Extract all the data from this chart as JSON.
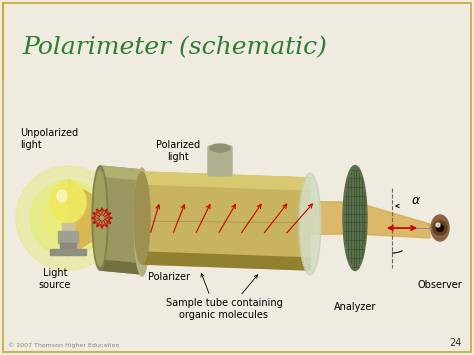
{
  "title": "Polarimeter (schematic)",
  "title_color": "#2e7d32",
  "title_fontsize": 18,
  "bg_color": "#f0ebe0",
  "border_color": "#c8a830",
  "labels": {
    "unpolarized_light": "Unpolarized\nlight",
    "polarized_light": "Polarized\nlight",
    "light_source": "Light\nsource",
    "polarizer": "Polarizer",
    "sample_tube": "Sample tube containing\norganic molecules",
    "analyzer": "Analyzer",
    "observer": "Observer",
    "alpha": "α"
  },
  "copyright": "© 2007 Thomson Higher Education",
  "page_num": "24",
  "light_beam_color": "#d4a843",
  "arrow_color": "#cc0000",
  "tube_gold": "#c8b460",
  "tube_dark": "#908040",
  "polarizer_color": "#707850",
  "analyzer_color": "#6a8060",
  "bulb_yellow": "#e8e050",
  "bulb_glow": "#c8d820"
}
